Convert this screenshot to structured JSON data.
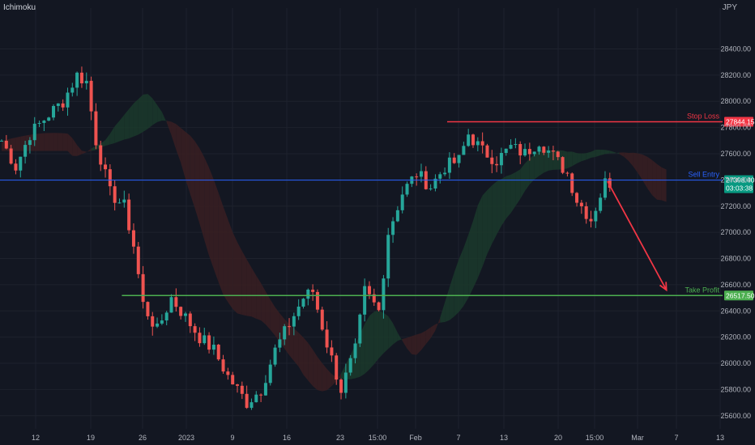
{
  "indicator": "Ichimoku",
  "currency": "JPY",
  "colors": {
    "background": "#131722",
    "grid": "#1e222d",
    "up": "#26a69a",
    "down": "#ef5350",
    "stop_loss": "#f23645",
    "sell_entry": "#2962ff",
    "take_profit": "#4caf50",
    "entry_tag": "#089981",
    "cloud_bull": "#1b3a2b",
    "cloud_bear": "#3a1f22",
    "arrow": "#f23645"
  },
  "chart_data": {
    "type": "candlestick",
    "ylim": [
      25500,
      28650
    ],
    "y_ticks": [
      25600,
      25800,
      26000,
      26200,
      26400,
      26600,
      26800,
      27000,
      27200,
      27400,
      27600,
      27800,
      28000,
      28200,
      28400
    ],
    "y_tick_labels": [
      "25600.00",
      "25800.00",
      "26000.00",
      "26200.00",
      "26400.00",
      "26600.00",
      "26800.00",
      "27000.00",
      "27200.00",
      "27400.00",
      "27600.00",
      "27800.00",
      "28000.00",
      "28200.00",
      "28400.00"
    ],
    "x_ticks": [
      "12",
      "19",
      "26",
      "2023",
      "9",
      "16",
      "23",
      "15:00",
      "Feb",
      "7",
      "13",
      "20",
      "15:00",
      "Mar",
      "7",
      "13"
    ],
    "levels": [
      {
        "name": "Stop Loss",
        "label": "Stop Loss",
        "value": 27844.15,
        "tag": "27844.15",
        "color": "#f23645"
      },
      {
        "name": "Sell Entry",
        "label": "Sell Entry",
        "value": 27398.4,
        "tag": "27398.40",
        "tag2": "03:03:38",
        "color": "#2962ff"
      },
      {
        "name": "Take Profit",
        "label": "Take Profit",
        "value": 26517.5,
        "tag": "26517.50",
        "color": "#4caf50"
      }
    ],
    "anchors": [
      [
        0,
        27700
      ],
      [
        3,
        27500
      ],
      [
        6,
        27750
      ],
      [
        10,
        27900
      ],
      [
        13,
        28000
      ],
      [
        16,
        28200
      ],
      [
        18,
        28150
      ],
      [
        20,
        27700
      ],
      [
        23,
        27300
      ],
      [
        26,
        27200
      ],
      [
        28,
        26900
      ],
      [
        30,
        26450
      ],
      [
        33,
        26250
      ],
      [
        36,
        26500
      ],
      [
        38,
        26400
      ],
      [
        42,
        26200
      ],
      [
        45,
        26100
      ],
      [
        48,
        25900
      ],
      [
        52,
        25700
      ],
      [
        55,
        25800
      ],
      [
        58,
        26100
      ],
      [
        61,
        26300
      ],
      [
        64,
        26500
      ],
      [
        66,
        26550
      ],
      [
        69,
        26150
      ],
      [
        72,
        25800
      ],
      [
        75,
        26100
      ],
      [
        77,
        26550
      ],
      [
        80,
        26400
      ],
      [
        82,
        27000
      ],
      [
        85,
        27300
      ],
      [
        88,
        27450
      ],
      [
        91,
        27350
      ],
      [
        94,
        27500
      ],
      [
        97,
        27550
      ],
      [
        99,
        27750
      ],
      [
        102,
        27620
      ],
      [
        105,
        27550
      ],
      [
        108,
        27650
      ],
      [
        111,
        27600
      ],
      [
        114,
        27700
      ],
      [
        117,
        27580
      ],
      [
        120,
        27450
      ],
      [
        122,
        27250
      ],
      [
        125,
        27100
      ],
      [
        128,
        27380
      ]
    ],
    "candle_count": 130,
    "forecast_arrow": {
      "from": [
        128.5,
        27390
      ],
      "to": [
        141,
        26560
      ]
    }
  }
}
